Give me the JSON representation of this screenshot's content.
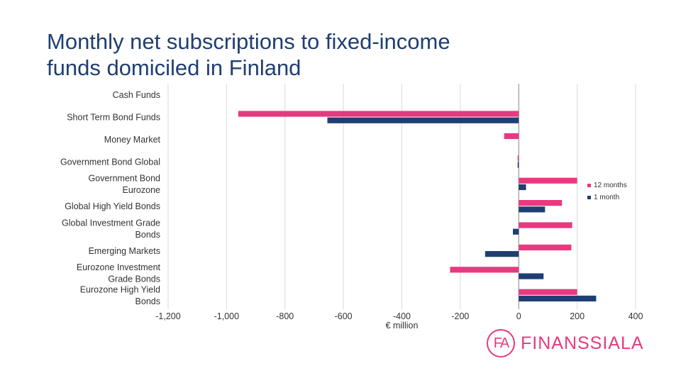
{
  "slide": {
    "title_line1": "Monthly net subscriptions to fixed-income",
    "title_line2": "funds domiciled in Finland"
  },
  "logo": {
    "mark": "FA",
    "text": "FINANSSIALA",
    "color": "#e8397f"
  },
  "chart_data": {
    "type": "bar",
    "orientation": "horizontal",
    "categories": [
      "Cash Funds",
      "Short Term Bond Funds",
      "Money Market",
      "Government Bond Global",
      "Government Bond Eurozone",
      "Global High Yield Bonds",
      "Global Investment Grade Bonds",
      "Emerging Markets",
      "Eurozone Investment Grade Bonds",
      "Eurozone High Yield Bonds"
    ],
    "category_lines": [
      [
        "Cash Funds"
      ],
      [
        "Short Term Bond Funds"
      ],
      [
        "Money Market"
      ],
      [
        "Government Bond Global"
      ],
      [
        "Government Bond",
        "Eurozone"
      ],
      [
        "Global High Yield Bonds"
      ],
      [
        "Global Investment Grade",
        "Bonds"
      ],
      [
        "Emerging Markets"
      ],
      [
        "Eurozone Investment",
        "Grade Bonds"
      ],
      [
        "Eurozone High Yield",
        "Bonds"
      ]
    ],
    "series": [
      {
        "name": "12 months",
        "color": "#e8397f",
        "values": [
          0,
          -960,
          -50,
          -2,
          200,
          148,
          183,
          180,
          -235,
          200
        ]
      },
      {
        "name": "1 month",
        "color": "#1f3e73",
        "values": [
          0,
          -655,
          0,
          -2,
          25,
          90,
          -20,
          -115,
          85,
          265
        ]
      }
    ],
    "xlabel": "€ million",
    "xlim": [
      -1200,
      400
    ],
    "x_ticks": [
      -1200,
      -1000,
      -800,
      -600,
      -400,
      -200,
      0,
      200,
      400
    ],
    "x_tick_labels": [
      "-1,200",
      "-1,000",
      "-800",
      "-600",
      "-400",
      "-200",
      "0",
      "200",
      "400"
    ],
    "grid": true,
    "legend": "right"
  }
}
